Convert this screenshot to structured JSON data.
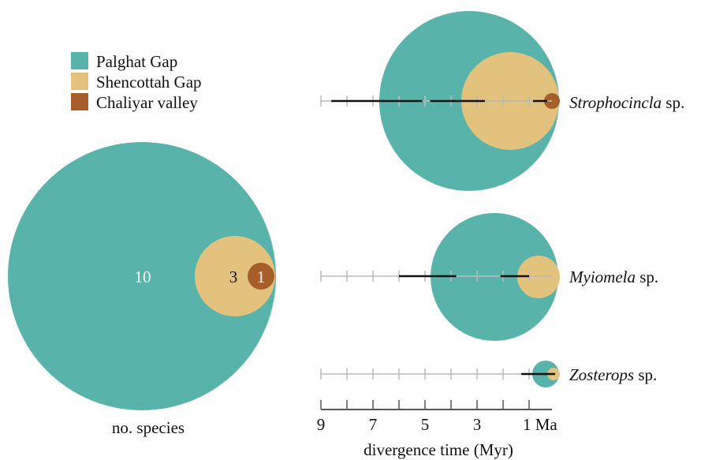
{
  "colors": {
    "palghat": "#58b3aa",
    "shencottah": "#e2c27d",
    "chaliyar": "#a65f2b",
    "axis": "#555555",
    "guide": "#bbbbbb",
    "interval": "#111111"
  },
  "legend": [
    {
      "label": "Palghat Gap",
      "color_key": "palghat"
    },
    {
      "label": "Shencottah Gap",
      "color_key": "shencottah"
    },
    {
      "label": "Chaliyar valley",
      "color_key": "chaliyar"
    }
  ],
  "species_counts": {
    "caption": "no. species",
    "palghat": "10",
    "shencottah": "3",
    "chaliyar": "1"
  },
  "axis": {
    "label": "divergence time (Myr)",
    "min": 0,
    "max": 9,
    "minor_ticks": [
      0,
      1,
      2,
      3,
      4,
      5,
      6,
      7,
      8,
      9
    ],
    "labels": [
      {
        "value": 9,
        "text": "9"
      },
      {
        "value": 7,
        "text": "7"
      },
      {
        "value": 5,
        "text": "5"
      },
      {
        "value": 3,
        "text": "3"
      },
      {
        "value": 1,
        "text": "1 Ma"
      }
    ]
  },
  "taxa": [
    {
      "genus": "Strophocincla",
      "suffix": " sp.",
      "intervals": [
        {
          "gap": "palghat",
          "from": 8.6,
          "to": 5.1
        },
        {
          "gap": "shencottah",
          "from": 4.8,
          "to": 2.7
        },
        {
          "gap": "chaliyar",
          "from": 0.85,
          "to": 0.3
        }
      ],
      "circles": {
        "palghat": 1.0,
        "shencottah": 0.66,
        "chaliyar": 0.13
      }
    },
    {
      "genus": "Myiomela",
      "suffix": " sp.",
      "intervals": [
        {
          "gap": "palghat",
          "from": 6.0,
          "to": 3.8
        },
        {
          "gap": "shencottah",
          "from": 2.1,
          "to": 1.0
        }
      ],
      "circles": {
        "palghat": 0.71,
        "shencottah": 0.33
      }
    },
    {
      "genus": "Zosterops",
      "suffix": " sp.",
      "intervals": [
        {
          "gap": "palghat",
          "from": 1.3,
          "to": 0.0
        }
      ],
      "circles": {
        "palghat": 0.15,
        "shencottah": 0.07
      }
    }
  ]
}
